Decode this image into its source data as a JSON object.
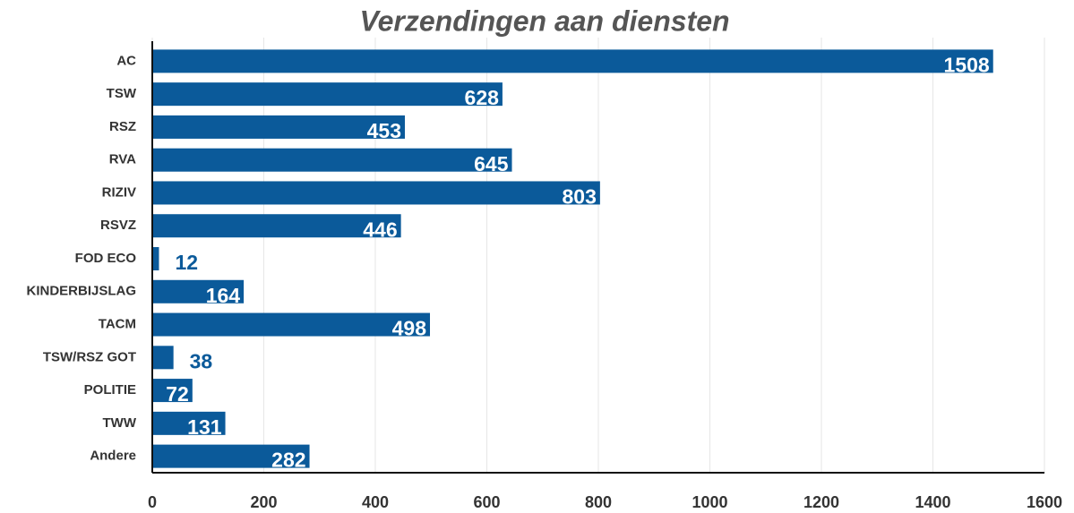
{
  "chart_data": {
    "type": "bar",
    "orientation": "horizontal",
    "title": "Verzendingen aan diensten",
    "categories": [
      "AC",
      "TSW",
      "RSZ",
      "RVA",
      "RIZIV",
      "RSVZ",
      "FOD ECO",
      "KINDERBIJSLAG",
      "TACM",
      "TSW/RSZ GOT",
      "POLITIE",
      "TWW",
      "Andere"
    ],
    "values": [
      1508,
      628,
      453,
      645,
      803,
      446,
      12,
      164,
      498,
      38,
      72,
      131,
      282
    ],
    "color": "#0b5a9a",
    "xlim": [
      0,
      1600
    ],
    "xticks": [
      0,
      200,
      400,
      600,
      800,
      1000,
      1200,
      1400,
      1600
    ],
    "grid": true
  }
}
